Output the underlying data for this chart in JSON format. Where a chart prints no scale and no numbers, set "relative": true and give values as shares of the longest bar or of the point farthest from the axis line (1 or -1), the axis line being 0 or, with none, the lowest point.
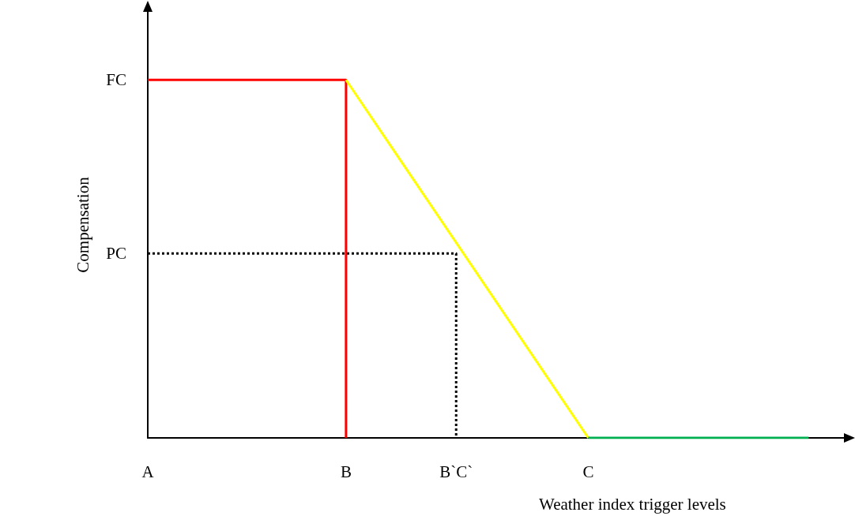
{
  "chart_data": {
    "type": "line",
    "relative": true,
    "xlabel": "Weather index trigger levels",
    "ylabel": "Compensation",
    "categories": [
      "A",
      null,
      null,
      null,
      null,
      null,
      null,
      null,
      null,
      "B",
      null,
      null,
      null,
      null,
      "B`C`",
      null,
      null,
      null,
      null,
      null,
      "C",
      null,
      null,
      null,
      null,
      null,
      null,
      null,
      null,
      null,
      null,
      null,
      null
    ],
    "annotations": [
      "FC",
      "PC"
    ],
    "grid": false,
    "marker": "none",
    "series": [
      {
        "color": "#ff0000",
        "x": [
          "A",
          "B",
          "B"
        ],
        "values": [
          1,
          1,
          0
        ]
      },
      {
        "color": "#ffff00",
        "x": [
          "B",
          "C"
        ],
        "values": [
          1,
          0
        ]
      },
      {
        "color": "#00b050",
        "values": [
          null,
          null,
          null,
          null,
          null,
          null,
          null,
          null,
          null,
          null,
          null,
          null,
          null,
          null,
          null,
          null,
          null,
          null,
          null,
          null,
          0,
          0,
          0,
          0,
          0,
          0,
          0,
          0,
          0,
          0,
          0,
          null,
          null
        ]
      },
      {
        "color": "#000000",
        "x": [
          "A",
          "B`C`",
          "B`C`"
        ],
        "values": [
          0.515,
          0.515,
          0
        ],
        "line_style": "dotted"
      }
    ]
  }
}
